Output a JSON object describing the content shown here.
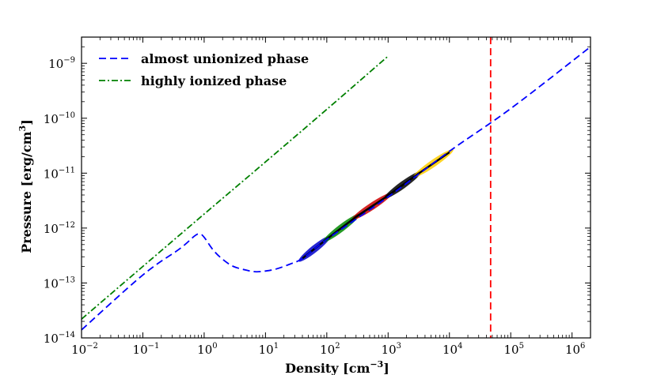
{
  "chart_data": {
    "type": "line",
    "xscale": "log",
    "yscale": "log",
    "xlabel_main": "Density [cm",
    "xlabel_sup": "−3",
    "xlabel_end": "]",
    "ylabel_main": "Pressure [erg/cm",
    "ylabel_sup": "3",
    "ylabel_end": "]",
    "xlim": [
      0.01,
      2000000
    ],
    "ylim": [
      1e-14,
      3e-09
    ],
    "x_ticks": [
      {
        "exp": -2,
        "base": "10",
        "sup": "−2"
      },
      {
        "exp": -1,
        "base": "10",
        "sup": "−1"
      },
      {
        "exp": 0,
        "base": "10",
        "sup": "0"
      },
      {
        "exp": 1,
        "base": "10",
        "sup": "1"
      },
      {
        "exp": 2,
        "base": "10",
        "sup": "2"
      },
      {
        "exp": 3,
        "base": "10",
        "sup": "3"
      },
      {
        "exp": 4,
        "base": "10",
        "sup": "4"
      },
      {
        "exp": 5,
        "base": "10",
        "sup": "5"
      },
      {
        "exp": 6,
        "base": "10",
        "sup": "6"
      }
    ],
    "y_ticks": [
      {
        "exp": -14,
        "base": "10",
        "sup": "−14"
      },
      {
        "exp": -13,
        "base": "10",
        "sup": "−13"
      },
      {
        "exp": -12,
        "base": "10",
        "sup": "−12"
      },
      {
        "exp": -11,
        "base": "10",
        "sup": "−11"
      },
      {
        "exp": -10,
        "base": "10",
        "sup": "−10"
      },
      {
        "exp": -9,
        "base": "10",
        "sup": "−9"
      }
    ],
    "series": [
      {
        "name": "almost unionized phase",
        "color": "#0000ff",
        "style": "dashed",
        "x": [
          0.01,
          0.1,
          0.4,
          0.7,
          0.85,
          1.0,
          1.4,
          2.0,
          3.0,
          5.0,
          7.0,
          10.0,
          15.0,
          25.0,
          40.0,
          100.0,
          1000.0,
          10000.0,
          100000.0,
          2000000.0
        ],
        "y": [
          1.4e-14,
          1.4e-13,
          4.2e-13,
          7.2e-13,
          7.8e-13,
          6.8e-13,
          4e-13,
          2.7e-13,
          2e-13,
          1.7e-13,
          1.6e-13,
          1.65e-13,
          1.8e-13,
          2.2e-13,
          2.8e-13,
          6.2e-13,
          3.7e-12,
          2.5e-11,
          1.5e-10,
          2e-09
        ]
      },
      {
        "name": "highly ionized phase",
        "color": "#008000",
        "style": "dashdot",
        "x": [
          0.01,
          0.1,
          1.0,
          10.0,
          100.0,
          1000.0
        ],
        "y": [
          2.2e-14,
          2e-13,
          1.8e-12,
          1.6e-11,
          1.45e-10,
          1.35e-09
        ]
      }
    ],
    "vertical_line": {
      "x": 47000,
      "color": "#ff0000",
      "style": "dashed"
    },
    "scatter_band": {
      "x": [
        40,
        100,
        300,
        1000,
        3000,
        10000
      ],
      "y": [
        2.8e-13,
        6.3e-13,
        1.6e-12,
        3.9e-12,
        9.5e-12,
        2.4e-11
      ],
      "colors": [
        "#0000cc",
        "#008800",
        "#cc0000",
        "#000000",
        "#ffcc00"
      ]
    },
    "legend": {
      "position": "top-left",
      "entries": [
        {
          "label": "almost unionized phase",
          "color": "#0000ff",
          "style": "dashed"
        },
        {
          "label": "highly ionized phase",
          "color": "#008000",
          "style": "dashdot"
        }
      ]
    }
  }
}
